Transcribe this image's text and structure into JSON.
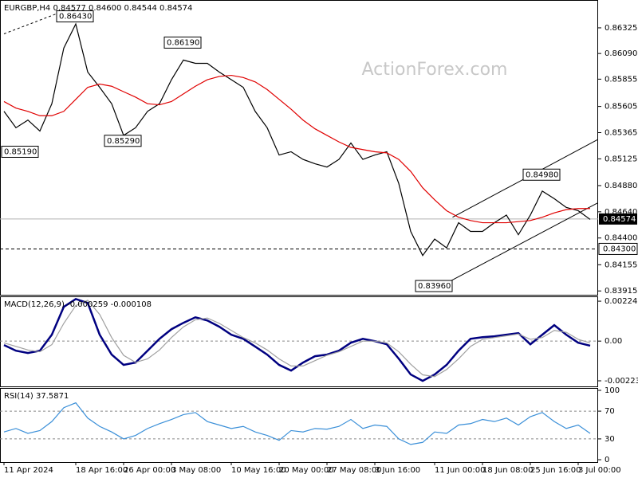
{
  "chart_data": [
    {
      "type": "line",
      "title": "EURGBP,H4 0.84577 0.84600 0.84544 0.84574",
      "watermark": "ActionForex.com",
      "xlim": [
        0,
        50
      ],
      "ylim": [
        0.8388,
        0.8658
      ],
      "yticks": [
        0.86325,
        {
          "value": 0.8609,
          "label": "0.86090"
        },
        0.85855,
        0.85605,
        0.85365,
        0.85125,
        {
          "value": 0.8488,
          "label": "0.84880"
        },
        {
          "value": 0.8464,
          "label": "0.84640"
        },
        {
          "value": 0.844,
          "label": "0.84400"
        },
        0.84155,
        0.83915
      ],
      "series": [
        {
          "color": "#000000",
          "values": [
            0.8556,
            0.8541,
            0.8548,
            0.8538,
            0.8563,
            0.8614,
            0.8636,
            0.8592,
            0.8578,
            0.8563,
            0.8534,
            0.8541,
            0.8556,
            0.8563,
            0.8585,
            0.8603,
            0.86,
            0.86,
            0.8592,
            0.8585,
            0.8578,
            0.8556,
            0.8541,
            0.8516,
            0.8519,
            0.8512,
            0.8508,
            0.8505,
            0.8512,
            0.8527,
            0.8512,
            0.8516,
            0.8519,
            0.849,
            0.8446,
            0.8424,
            0.8439,
            0.8431,
            0.8454,
            0.8446,
            0.8446,
            0.8454,
            0.8461,
            0.8443,
            0.8461,
            0.8483,
            0.8476,
            0.8468,
            0.8465,
            0.8457
          ]
        },
        {
          "color": "#e00000",
          "values": [
            0.8565,
            0.8559,
            0.8556,
            0.8552,
            0.8552,
            0.8556,
            0.8567,
            0.8578,
            0.8581,
            0.8579,
            0.8574,
            0.8569,
            0.8563,
            0.8562,
            0.8565,
            0.8572,
            0.8579,
            0.8585,
            0.8588,
            0.8589,
            0.8587,
            0.8583,
            0.8576,
            0.8567,
            0.8558,
            0.8548,
            0.854,
            0.8534,
            0.8528,
            0.8523,
            0.8521,
            0.8519,
            0.8518,
            0.8512,
            0.8501,
            0.8486,
            0.8475,
            0.8465,
            0.8459,
            0.8456,
            0.8454,
            0.8454,
            0.8454,
            0.8455,
            0.8456,
            0.8459,
            0.8463,
            0.8466,
            0.8467,
            0.8467
          ]
        }
      ],
      "annotations": [
        {
          "x": 6,
          "value": 0.8643,
          "label": "0.86430"
        },
        {
          "x": 15,
          "value": 0.8619,
          "label": "0.86190"
        },
        {
          "x": 10,
          "value": 0.8529,
          "label": "0.85290"
        },
        {
          "x": 1,
          "value": 0.8519,
          "label": "0.85190"
        },
        {
          "x": 36,
          "value": 0.8396,
          "label": "0.83960"
        },
        {
          "x": 45,
          "value": 0.8498,
          "label": "0.84980"
        }
      ],
      "hlines": [
        {
          "value": 0.843,
          "label": "0.84300",
          "style": "dashed"
        }
      ],
      "last_price": {
        "value": 0.84574,
        "label": "0.84574"
      },
      "trendlines": [
        {
          "x": [
            36.7,
            49.6
          ],
          "values": [
            0.8397,
            0.8472
          ]
        },
        {
          "x": [
            37.5,
            49.6
          ],
          "values": [
            0.8459,
            0.853
          ]
        },
        {
          "x": [
            0,
            4.3
          ],
          "values": [
            0.8627,
            0.8645
          ],
          "style": "dotted"
        }
      ]
    },
    {
      "type": "line",
      "title": "MACD(12,26,9) -0.000259 -0.000108",
      "xlim": [
        0,
        50
      ],
      "ylim": [
        -0.00255,
        0.00252
      ],
      "yticks": [
        0.002248,
        {
          "value": 0,
          "label": "0.00"
        },
        -0.002236
      ],
      "levels": [
        0
      ],
      "series": [
        {
          "color": "#000080",
          "values": [
            -0.00022,
            -0.00054,
            -0.00067,
            -0.00054,
            0.00036,
            0.00193,
            0.00237,
            0.00215,
            0.00036,
            -0.00076,
            -0.00134,
            -0.00121,
            -0.00054,
            0.00013,
            0.00067,
            0.00103,
            0.00134,
            0.00116,
            0.00081,
            0.00036,
            0.00013,
            -0.00031,
            -0.00076,
            -0.00134,
            -0.00166,
            -0.00121,
            -0.00085,
            -0.00076,
            -0.00054,
            -9e-05,
            0.00013,
            0,
            -0.00018,
            -0.00099,
            -0.00188,
            -0.00224,
            -0.00188,
            -0.00134,
            -0.00054,
            0.00013,
            0.00022,
            0.00027,
            0.00036,
            0.00045,
            -0.00018,
            0.00036,
            0.0009,
            0.00036,
            -9e-05,
            -0.00026
          ]
        },
        {
          "color": "#a0a0a0",
          "values": [
            -0.0001,
            -0.0003,
            -0.0005,
            -0.0006,
            -0.0002,
            0.001,
            0.002,
            0.0023,
            0.0015,
            0.0002,
            -0.0008,
            -0.0012,
            -0.001,
            -0.0005,
            0.0002,
            0.0008,
            0.0012,
            0.0013,
            0.001,
            0.0006,
            0.0002,
            -0.0001,
            -0.0005,
            -0.001,
            -0.0014,
            -0.0014,
            -0.0011,
            -0.0008,
            -0.0006,
            -0.0003,
            0,
            0,
            -0.0001,
            -0.0006,
            -0.0013,
            -0.0019,
            -0.002,
            -0.0016,
            -0.001,
            -0.0003,
            0.0001,
            0.0002,
            0.0003,
            0.0004,
            0.0001,
            0.0002,
            0.0006,
            0.0005,
            0.0001,
            -0.0001
          ]
        }
      ]
    },
    {
      "type": "line",
      "title": "RSI(14) 37.5871",
      "xlim": [
        0,
        50
      ],
      "ylim": [
        -3.4,
        103.4
      ],
      "yticks": [
        100,
        70,
        30,
        0
      ],
      "levels": [
        70,
        30
      ],
      "series": [
        {
          "color": "#3a8fd8",
          "values": [
            40,
            45,
            38,
            42,
            55,
            75,
            82,
            60,
            48,
            40,
            30,
            35,
            45,
            52,
            58,
            65,
            68,
            55,
            50,
            45,
            48,
            40,
            35,
            28,
            42,
            40,
            45,
            44,
            48,
            58,
            45,
            50,
            48,
            30,
            22,
            25,
            40,
            38,
            50,
            52,
            58,
            55,
            60,
            50,
            62,
            68,
            55,
            45,
            50,
            38
          ]
        }
      ],
      "xticks": [
        {
          "value": 0,
          "label": "11 Apr 2024"
        },
        {
          "value": 6,
          "label": "18 Apr 16:00"
        },
        {
          "value": 10,
          "label": "26 Apr 00:00"
        },
        {
          "value": 14,
          "label": "3 May 08:00"
        },
        {
          "value": 19,
          "label": "10 May 16:00"
        },
        {
          "value": 23,
          "label": "20 May 00:00"
        },
        {
          "value": 27,
          "label": "27 May 08:00"
        },
        {
          "value": 31,
          "label": "3 Jun 16:00"
        },
        {
          "value": 36,
          "label": "11 Jun 00:00"
        },
        {
          "value": 40,
          "label": "18 Jun 08:00"
        },
        {
          "value": 44,
          "label": "25 Jun 16:00"
        },
        {
          "value": 48,
          "label": "3 Jul 00:00"
        }
      ]
    }
  ]
}
